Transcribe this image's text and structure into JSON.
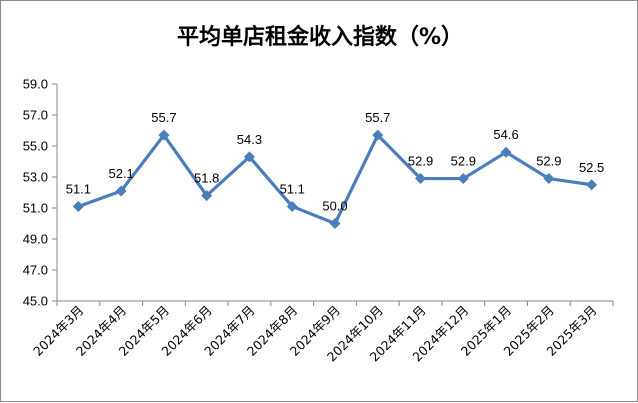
{
  "chart_data": {
    "type": "line",
    "title": "平均单店租金收入指数（%）",
    "categories": [
      "2024年3月",
      "2024年4月",
      "2024年5月",
      "2024年6月",
      "2024年7月",
      "2024年8月",
      "2024年9月",
      "2024年10月",
      "2024年11月",
      "2024年12月",
      "2025年1月",
      "2025年2月",
      "2025年3月"
    ],
    "series": [
      {
        "values": [
          51.1,
          52.1,
          55.7,
          51.8,
          54.3,
          51.1,
          50.0,
          55.7,
          52.9,
          52.9,
          54.6,
          52.9,
          52.5
        ],
        "labels": [
          "51.1",
          "52.1",
          "55.7",
          "51.8",
          "54.3",
          "51.1",
          "50.0",
          "55.7",
          "52.9",
          "52.9",
          "54.6",
          "52.9",
          "52.5"
        ],
        "color": "#4a7ebb",
        "marker": "diamond"
      }
    ],
    "y_ticks": [
      "45.0",
      "47.0",
      "49.0",
      "51.0",
      "53.0",
      "55.0",
      "57.0",
      "59.0"
    ],
    "ylim": [
      45,
      59
    ],
    "grid": false,
    "legend": "none"
  }
}
